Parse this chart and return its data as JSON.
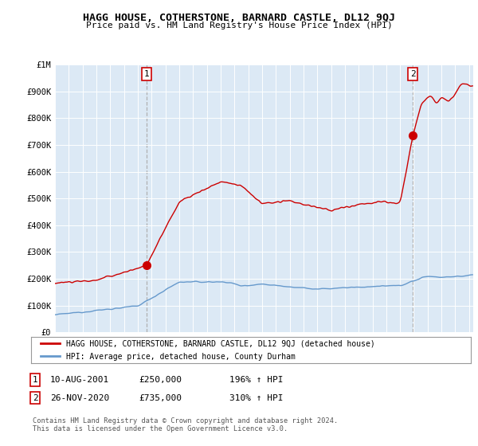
{
  "title": "HAGG HOUSE, COTHERSTONE, BARNARD CASTLE, DL12 9QJ",
  "subtitle": "Price paid vs. HM Land Registry's House Price Index (HPI)",
  "background_color": "#ffffff",
  "plot_bg_color": "#dce9f5",
  "red_line_color": "#cc0000",
  "blue_line_color": "#6699cc",
  "grid_color": "#ffffff",
  "vline_color": "#aaaaaa",
  "ylim": [
    0,
    1000000
  ],
  "xlim_start": 1995.0,
  "xlim_end": 2025.3,
  "yticks": [
    0,
    100000,
    200000,
    300000,
    400000,
    500000,
    600000,
    700000,
    800000,
    900000,
    1000000
  ],
  "ytick_labels": [
    "£0",
    "£100K",
    "£200K",
    "£300K",
    "£400K",
    "£500K",
    "£600K",
    "£700K",
    "£800K",
    "£900K",
    "£1M"
  ],
  "xticks": [
    1995,
    1996,
    1997,
    1998,
    1999,
    2000,
    2001,
    2002,
    2003,
    2004,
    2005,
    2006,
    2007,
    2008,
    2009,
    2010,
    2011,
    2012,
    2013,
    2014,
    2015,
    2016,
    2017,
    2018,
    2019,
    2020,
    2021,
    2022,
    2023,
    2024,
    2025
  ],
  "sale1_x": 2001.62,
  "sale1_y": 250000,
  "sale1_label": "1",
  "sale2_x": 2020.92,
  "sale2_y": 735000,
  "sale2_label": "2",
  "legend_line1": "HAGG HOUSE, COTHERSTONE, BARNARD CASTLE, DL12 9QJ (detached house)",
  "legend_line2": "HPI: Average price, detached house, County Durham",
  "footer": "Contains HM Land Registry data © Crown copyright and database right 2024.\nThis data is licensed under the Open Government Licence v3.0."
}
